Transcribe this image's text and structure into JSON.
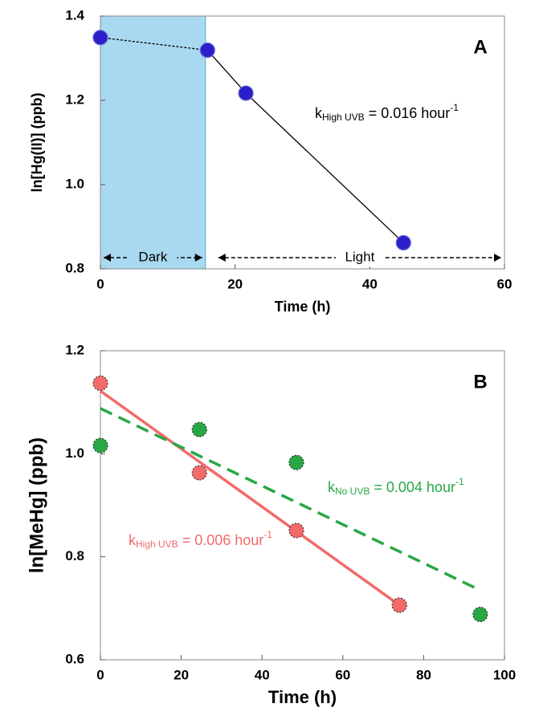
{
  "chart_data": [
    {
      "type": "scatter",
      "panel": "A",
      "xlabel": "Time (h)",
      "ylabel": "ln[Hg(II)]  (ppb)",
      "xlim": [
        0,
        60
      ],
      "xticks": [
        0,
        20,
        40,
        60
      ],
      "ylim": [
        0.8,
        1.4
      ],
      "yticks": [
        0.8,
        {
          "value": 1.0,
          "label": "1.0"
        },
        1.2,
        1.4
      ],
      "shaded_region": {
        "xlim": [
          0,
          15.6
        ],
        "color": "#a9d9f0"
      },
      "series": [
        {
          "color": "#2a1fc8",
          "x": [
            0,
            15.9,
            21.6,
            45
          ],
          "values": [
            1.349,
            1.319,
            1.217,
            0.862
          ]
        }
      ],
      "annotations": [
        {
          "text": "Dark"
        },
        {
          "text": "Light"
        },
        {
          "text": "k",
          "sub": "High UVB",
          "rest": " =  0.016 hour",
          "sup": "-1"
        }
      ]
    },
    {
      "type": "scatter",
      "panel": "B",
      "xlabel": "Time (h)",
      "ylabel": "ln[MeHg]  (ppb)",
      "xlim": [
        0,
        100
      ],
      "xticks": [
        0,
        20,
        40,
        60,
        80,
        100
      ],
      "ylim": [
        0.6,
        1.2
      ],
      "yticks": [
        0.6,
        0.8,
        {
          "value": 1.0,
          "label": "1.0"
        },
        1.2
      ],
      "series": [
        {
          "color": "#f26a6a",
          "x": [
            0,
            24.5,
            48.5,
            74
          ],
          "values": [
            1.137,
            0.963,
            0.851,
            0.706
          ],
          "fit": {
            "x": [
              0,
              74
            ],
            "values": [
              1.122,
              0.706
            ]
          }
        },
        {
          "color": "#27a844",
          "x": [
            0,
            24.5,
            48.5,
            94
          ],
          "values": [
            1.016,
            1.047,
            0.983,
            0.688
          ],
          "fit": {
            "x": [
              0,
              94
            ],
            "values": [
              1.088,
              0.735
            ]
          }
        }
      ],
      "annotations": [
        {
          "text": "k",
          "sub": "No UVB",
          "rest": " =  0.004 hour",
          "sup": "-1"
        },
        {
          "text": "k",
          "sub": "High UVB",
          "rest": " = 0.006 hour",
          "sup": "-1"
        }
      ]
    }
  ]
}
